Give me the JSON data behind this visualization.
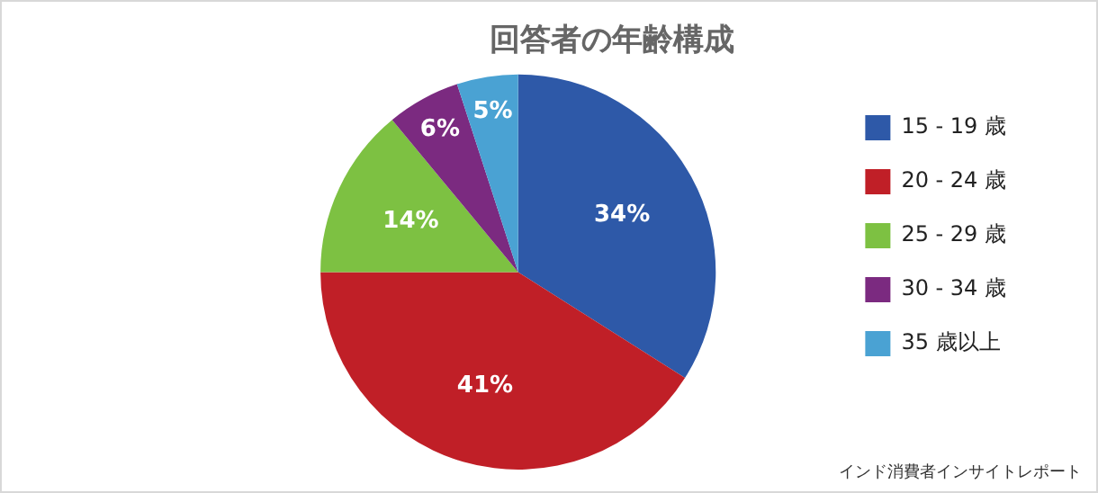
{
  "chart_data": {
    "type": "pie",
    "title": "回答者の年齢構成",
    "categories": [
      "15 - 19 歳",
      "20 - 24 歳",
      "25 - 29 歳",
      "30 - 34 歳",
      "35 歳以上"
    ],
    "values": [
      34,
      41,
      14,
      6,
      5
    ],
    "colors": [
      "#2e59a8",
      "#c01f27",
      "#7dc142",
      "#7b2a80",
      "#4aa2d3"
    ],
    "value_labels": [
      "34%",
      "41%",
      "14%",
      "6%",
      "5%"
    ],
    "legend": "right",
    "annotations": [
      "インド消費者インサイトレポート"
    ]
  }
}
